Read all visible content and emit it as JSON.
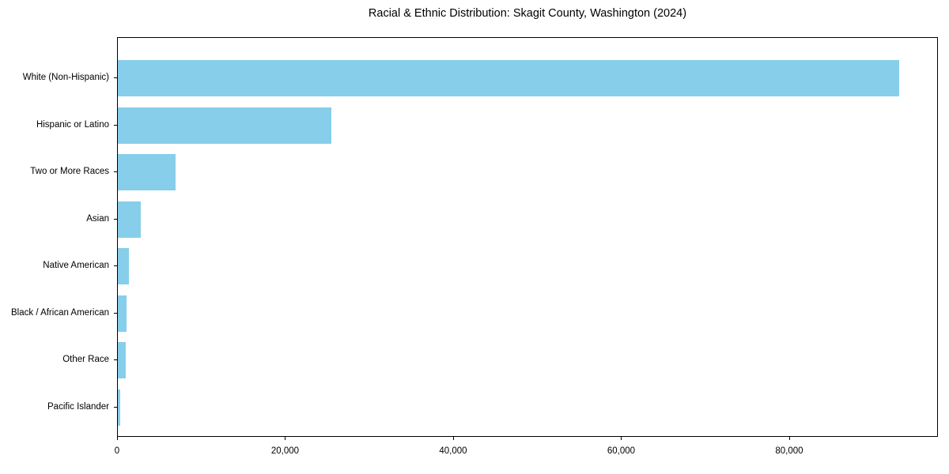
{
  "chart_data": {
    "type": "bar",
    "orientation": "horizontal",
    "title": "Racial & Ethnic Distribution: Skagit County, Washington (2024)",
    "categories": [
      "White (Non-Hispanic)",
      "Hispanic or Latino",
      "Two or More Races",
      "Asian",
      "Native American",
      "Black / African American",
      "Other Race",
      "Pacific Islander"
    ],
    "values": [
      93000,
      25400,
      6900,
      2700,
      1350,
      1000,
      950,
      250
    ],
    "bar_color": "#87CEEB",
    "xlim": [
      0,
      97700
    ],
    "x_ticks": [
      0,
      20000,
      40000,
      60000,
      80000
    ],
    "x_tick_labels": [
      "0",
      "20,000",
      "40,000",
      "60,000",
      "80,000"
    ],
    "xlabel": "",
    "ylabel": "",
    "grid": false,
    "legend": "none",
    "frame": "full-box"
  }
}
